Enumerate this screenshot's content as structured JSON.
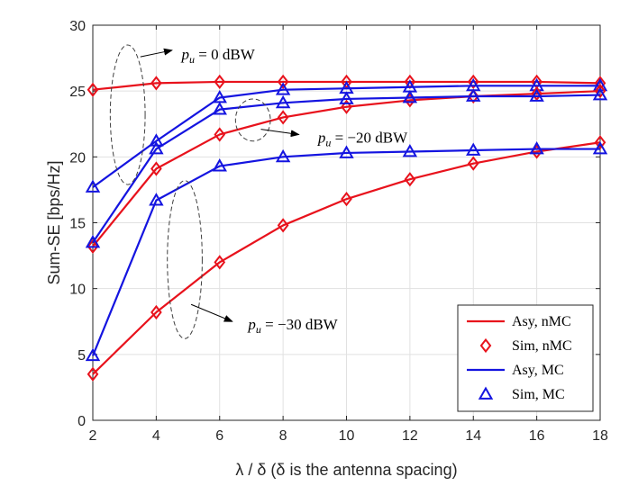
{
  "chart_data": {
    "type": "line",
    "title": "",
    "xlabel": "λ / δ (δ is the antenna spacing)",
    "ylabel": "Sum-SE [bps/Hz]",
    "xlim": [
      2,
      18
    ],
    "ylim": [
      0,
      30
    ],
    "xticks": [
      2,
      4,
      6,
      8,
      10,
      12,
      14,
      16,
      18
    ],
    "yticks": [
      0,
      5,
      10,
      15,
      20,
      25,
      30
    ],
    "grid": true,
    "legend_position": "bottom-right",
    "x": [
      2,
      4,
      6,
      8,
      10,
      12,
      14,
      16,
      18
    ],
    "series": [
      {
        "name": "Asy, nMC",
        "group": "nMC",
        "style": "line",
        "color": "#e8121c",
        "pu": "0 dBW",
        "values": [
          25.1,
          25.6,
          25.7,
          25.7,
          25.7,
          25.7,
          25.7,
          25.7,
          25.6
        ]
      },
      {
        "name": "Sim, nMC",
        "group": "nMC",
        "style": "marker",
        "marker": "diamond",
        "color": "#e8121c",
        "pu": "0 dBW",
        "values": [
          25.1,
          25.6,
          25.7,
          25.7,
          25.7,
          25.7,
          25.7,
          25.7,
          25.6
        ]
      },
      {
        "name": "Asy, MC",
        "group": "MC",
        "style": "line",
        "color": "#1414e0",
        "pu": "0 dBW",
        "values": [
          17.7,
          21.2,
          24.5,
          25.1,
          25.2,
          25.3,
          25.4,
          25.4,
          25.4
        ]
      },
      {
        "name": "Sim, MC",
        "group": "MC",
        "style": "marker",
        "marker": "triangle",
        "color": "#1414e0",
        "pu": "0 dBW",
        "values": [
          17.7,
          21.2,
          24.5,
          25.1,
          25.2,
          25.3,
          25.4,
          25.4,
          25.4
        ]
      },
      {
        "name": "Asy, nMC",
        "group": "nMC",
        "style": "line",
        "color": "#e8121c",
        "pu": "-20 dBW",
        "values": [
          13.2,
          19.1,
          21.7,
          23.0,
          23.8,
          24.3,
          24.6,
          24.8,
          25.0
        ]
      },
      {
        "name": "Sim, nMC",
        "group": "nMC",
        "style": "marker",
        "marker": "diamond",
        "color": "#e8121c",
        "pu": "-20 dBW",
        "values": [
          13.2,
          19.1,
          21.7,
          23.0,
          23.8,
          24.3,
          24.6,
          24.8,
          25.0
        ]
      },
      {
        "name": "Asy, MC",
        "group": "MC",
        "style": "line",
        "color": "#1414e0",
        "pu": "-20 dBW",
        "values": [
          13.5,
          20.6,
          23.6,
          24.1,
          24.4,
          24.5,
          24.6,
          24.6,
          24.7
        ]
      },
      {
        "name": "Sim, MC",
        "group": "MC",
        "style": "marker",
        "marker": "triangle",
        "color": "#1414e0",
        "pu": "-20 dBW",
        "values": [
          13.5,
          20.6,
          23.6,
          24.1,
          24.4,
          24.5,
          24.6,
          24.6,
          24.7
        ]
      },
      {
        "name": "Asy, nMC",
        "group": "nMC",
        "style": "line",
        "color": "#e8121c",
        "pu": "-30 dBW",
        "values": [
          3.5,
          8.2,
          12.0,
          14.8,
          16.8,
          18.3,
          19.5,
          20.4,
          21.1
        ]
      },
      {
        "name": "Sim, nMC",
        "group": "nMC",
        "style": "marker",
        "marker": "diamond",
        "color": "#e8121c",
        "pu": "-30 dBW",
        "values": [
          3.5,
          8.2,
          12.0,
          14.8,
          16.8,
          18.3,
          19.5,
          20.4,
          21.1
        ]
      },
      {
        "name": "Asy, MC",
        "group": "MC",
        "style": "line",
        "color": "#1414e0",
        "pu": "-30 dBW",
        "values": [
          4.9,
          16.7,
          19.3,
          20.0,
          20.3,
          20.4,
          20.5,
          20.6,
          20.6
        ]
      },
      {
        "name": "Sim, MC",
        "group": "MC",
        "style": "marker",
        "marker": "triangle",
        "color": "#1414e0",
        "pu": "-30 dBW",
        "values": [
          4.9,
          16.7,
          19.3,
          20.0,
          20.3,
          20.4,
          20.5,
          20.6,
          20.6
        ]
      }
    ],
    "legend": [
      {
        "label": "Asy, nMC",
        "style": "line",
        "color": "#e8121c"
      },
      {
        "label": "Sim, nMC",
        "style": "marker",
        "marker": "diamond",
        "color": "#e8121c"
      },
      {
        "label": "Asy, MC",
        "style": "line",
        "color": "#1414e0"
      },
      {
        "label": "Sim, MC",
        "style": "marker",
        "marker": "triangle",
        "color": "#1414e0"
      }
    ],
    "annotations": [
      {
        "id": "pu0",
        "text_main": "p",
        "text_sub": "u",
        "text_rest": " = 0 dBW",
        "ellipse_center": [
          3.1,
          23.2
        ],
        "ellipse_radii": [
          0.55,
          5.3
        ],
        "arrow_from": [
          3.5,
          27.6
        ],
        "arrow_to": [
          4.5,
          28.1
        ],
        "text_anchor_at": [
          4.8,
          27.8
        ]
      },
      {
        "id": "pu20",
        "text_main": "p",
        "text_sub": "u",
        "text_rest": " = −20 dBW",
        "ellipse_center": [
          7.05,
          22.8
        ],
        "ellipse_radii": [
          0.55,
          1.6
        ],
        "arrow_from": [
          7.3,
          22.1
        ],
        "arrow_to": [
          8.5,
          21.7
        ],
        "text_anchor_at": [
          9.1,
          21.5
        ]
      },
      {
        "id": "pu30",
        "text_main": "p",
        "text_sub": "u",
        "text_rest": " = −30 dBW",
        "ellipse_center": [
          4.9,
          12.2
        ],
        "ellipse_radii": [
          0.55,
          6.0
        ],
        "arrow_from": [
          5.1,
          8.8
        ],
        "arrow_to": [
          6.4,
          7.5
        ],
        "text_anchor_at": [
          6.9,
          7.3
        ]
      }
    ]
  }
}
